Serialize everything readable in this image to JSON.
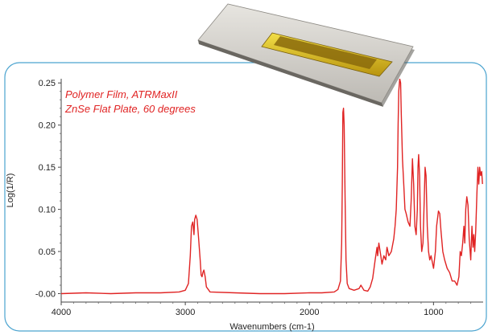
{
  "chart_data": {
    "type": "line",
    "annotation_lines": [
      "Polymer Film, ATRMaxII",
      "ZnSe Flat Plate, 60 degrees"
    ],
    "xlabel": "Wavenumbers (cm-1)",
    "ylabel": "Log(1/R)",
    "x_reversed": true,
    "xlim": [
      4000,
      600
    ],
    "ylim": [
      -0.01,
      0.255
    ],
    "x_ticks": [
      "4000",
      "3000",
      "2000",
      "1000"
    ],
    "y_ticks": [
      "-0.00",
      "0.05",
      "0.10",
      "0.15",
      "0.20",
      "0.25"
    ],
    "grid": false,
    "series": [
      {
        "color": "#e02424",
        "points": [
          [
            4000,
            0.0
          ],
          [
            3800,
            0.001
          ],
          [
            3600,
            0.0
          ],
          [
            3400,
            0.001
          ],
          [
            3200,
            0.001
          ],
          [
            3050,
            0.002
          ],
          [
            3000,
            0.004
          ],
          [
            2975,
            0.012
          ],
          [
            2960,
            0.045
          ],
          [
            2950,
            0.08
          ],
          [
            2940,
            0.085
          ],
          [
            2930,
            0.07
          ],
          [
            2925,
            0.088
          ],
          [
            2915,
            0.093
          ],
          [
            2905,
            0.088
          ],
          [
            2895,
            0.07
          ],
          [
            2880,
            0.04
          ],
          [
            2872,
            0.022
          ],
          [
            2865,
            0.02
          ],
          [
            2858,
            0.025
          ],
          [
            2850,
            0.028
          ],
          [
            2840,
            0.02
          ],
          [
            2830,
            0.008
          ],
          [
            2800,
            0.002
          ],
          [
            2600,
            0.001
          ],
          [
            2400,
            0.0
          ],
          [
            2200,
            0.0
          ],
          [
            2000,
            0.001
          ],
          [
            1900,
            0.001
          ],
          [
            1800,
            0.002
          ],
          [
            1770,
            0.005
          ],
          [
            1750,
            0.015
          ],
          [
            1740,
            0.06
          ],
          [
            1735,
            0.13
          ],
          [
            1730,
            0.215
          ],
          [
            1725,
            0.22
          ],
          [
            1720,
            0.2
          ],
          [
            1712,
            0.11
          ],
          [
            1705,
            0.04
          ],
          [
            1695,
            0.012
          ],
          [
            1680,
            0.006
          ],
          [
            1640,
            0.004
          ],
          [
            1600,
            0.006
          ],
          [
            1585,
            0.01
          ],
          [
            1560,
            0.004
          ],
          [
            1530,
            0.003
          ],
          [
            1510,
            0.008
          ],
          [
            1490,
            0.018
          ],
          [
            1470,
            0.04
          ],
          [
            1455,
            0.055
          ],
          [
            1450,
            0.045
          ],
          [
            1440,
            0.06
          ],
          [
            1430,
            0.05
          ],
          [
            1415,
            0.035
          ],
          [
            1400,
            0.045
          ],
          [
            1385,
            0.04
          ],
          [
            1375,
            0.055
          ],
          [
            1360,
            0.045
          ],
          [
            1340,
            0.05
          ],
          [
            1320,
            0.065
          ],
          [
            1310,
            0.08
          ],
          [
            1300,
            0.1
          ],
          [
            1290,
            0.15
          ],
          [
            1285,
            0.2
          ],
          [
            1280,
            0.24
          ],
          [
            1272,
            0.255
          ],
          [
            1265,
            0.25
          ],
          [
            1260,
            0.215
          ],
          [
            1250,
            0.16
          ],
          [
            1240,
            0.13
          ],
          [
            1230,
            0.1
          ],
          [
            1220,
            0.095
          ],
          [
            1205,
            0.085
          ],
          [
            1190,
            0.08
          ],
          [
            1180,
            0.11
          ],
          [
            1170,
            0.16
          ],
          [
            1160,
            0.13
          ],
          [
            1150,
            0.08
          ],
          [
            1140,
            0.07
          ],
          [
            1130,
            0.1
          ],
          [
            1125,
            0.15
          ],
          [
            1120,
            0.165
          ],
          [
            1112,
            0.14
          ],
          [
            1105,
            0.08
          ],
          [
            1095,
            0.05
          ],
          [
            1085,
            0.06
          ],
          [
            1075,
            0.11
          ],
          [
            1068,
            0.15
          ],
          [
            1060,
            0.14
          ],
          [
            1050,
            0.08
          ],
          [
            1040,
            0.05
          ],
          [
            1030,
            0.04
          ],
          [
            1020,
            0.045
          ],
          [
            1000,
            0.03
          ],
          [
            985,
            0.05
          ],
          [
            975,
            0.08
          ],
          [
            960,
            0.098
          ],
          [
            950,
            0.095
          ],
          [
            940,
            0.075
          ],
          [
            925,
            0.05
          ],
          [
            910,
            0.04
          ],
          [
            890,
            0.03
          ],
          [
            870,
            0.025
          ],
          [
            850,
            0.015
          ],
          [
            830,
            0.015
          ],
          [
            810,
            0.01
          ],
          [
            795,
            0.02
          ],
          [
            785,
            0.05
          ],
          [
            775,
            0.045
          ],
          [
            765,
            0.06
          ],
          [
            755,
            0.08
          ],
          [
            748,
            0.06
          ],
          [
            740,
            0.1
          ],
          [
            732,
            0.115
          ],
          [
            722,
            0.105
          ],
          [
            712,
            0.065
          ],
          [
            700,
            0.04
          ],
          [
            690,
            0.08
          ],
          [
            682,
            0.055
          ],
          [
            675,
            0.07
          ],
          [
            668,
            0.05
          ],
          [
            660,
            0.075
          ],
          [
            650,
            0.12
          ],
          [
            642,
            0.15
          ],
          [
            635,
            0.13
          ],
          [
            628,
            0.15
          ],
          [
            620,
            0.14
          ],
          [
            612,
            0.145
          ],
          [
            605,
            0.13
          ]
        ]
      }
    ]
  },
  "colors": {
    "line": "#e02424",
    "annotation": "#e02424",
    "frame_border": "#4aa3cf",
    "axis": "#444444",
    "plate_body": "#d6d4cf",
    "plate_crystal": "#e3c826"
  },
  "icons": [
    "atr-accessory-plate-image"
  ]
}
